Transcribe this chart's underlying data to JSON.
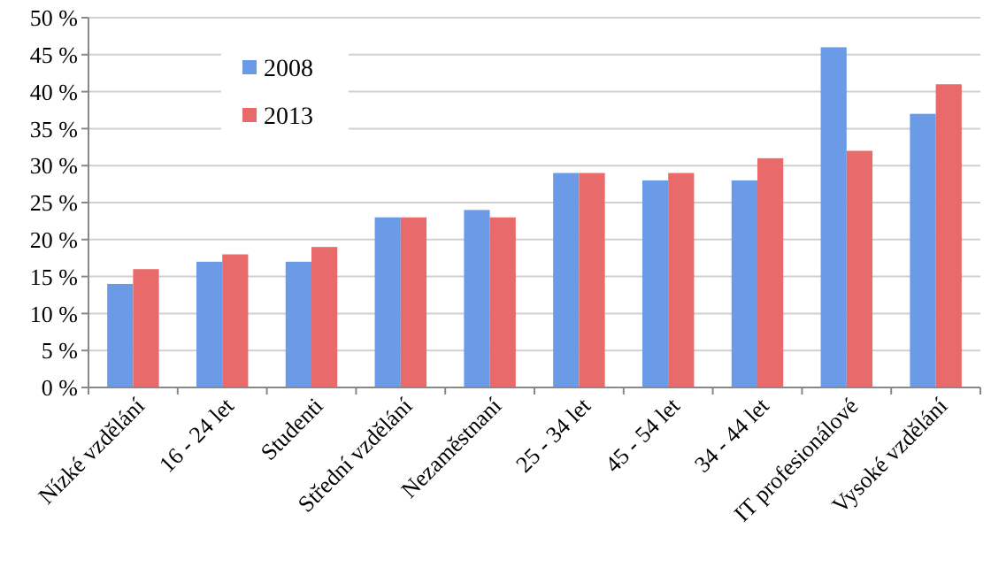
{
  "chart_data": {
    "type": "bar",
    "categories": [
      "Nízké vzdělání",
      "16 - 24 let",
      "Studenti",
      "Střední vzdělání",
      "Nezaměstnaní",
      "25 - 34 let",
      "45 - 54 let",
      "34 - 44 let",
      "IT profesionálové",
      "Vysoké vzdělání"
    ],
    "series": [
      {
        "name": "2008",
        "color": "#6b9be6",
        "values": [
          14,
          17,
          17,
          23,
          24,
          29,
          28,
          28,
          46,
          37
        ]
      },
      {
        "name": "2013",
        "color": "#e86a6a",
        "values": [
          16,
          18,
          19,
          23,
          23,
          29,
          29,
          31,
          32,
          41
        ]
      }
    ],
    "ylim": [
      0,
      50
    ],
    "yticks": [
      {
        "value": 0,
        "label": "0 %"
      },
      {
        "value": 5,
        "label": "5 %"
      },
      {
        "value": 10,
        "label": "10 %"
      },
      {
        "value": 15,
        "label": "15 %"
      },
      {
        "value": 20,
        "label": "20 %"
      },
      {
        "value": 25,
        "label": "25 %"
      },
      {
        "value": 30,
        "label": "30 %"
      },
      {
        "value": 35,
        "label": "35 %"
      },
      {
        "value": 40,
        "label": "40 %"
      },
      {
        "value": 45,
        "label": "45 %"
      },
      {
        "value": 50,
        "label": "50 %"
      }
    ],
    "grid": "y",
    "legend": "top left"
  }
}
